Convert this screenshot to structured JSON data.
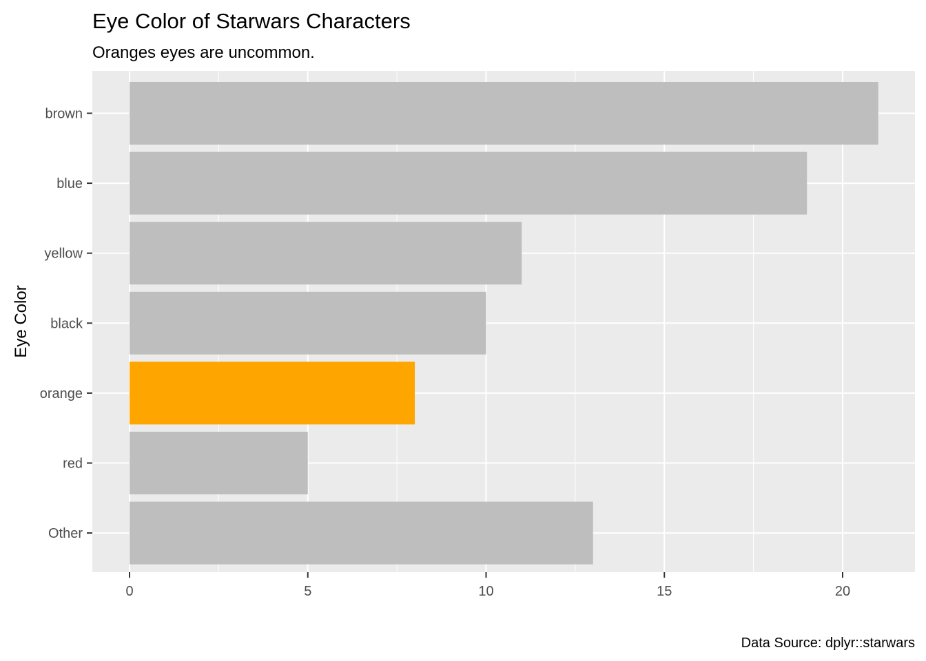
{
  "chart_data": {
    "type": "bar",
    "orientation": "horizontal",
    "title": "Eye Color of Starwars Characters",
    "subtitle": "Oranges eyes are uncommon.",
    "xlabel": "",
    "ylabel": "Eye Color",
    "caption": "Data Source: dplyr::starwars",
    "categories": [
      "brown",
      "blue",
      "yellow",
      "black",
      "orange",
      "red",
      "Other"
    ],
    "values": [
      21,
      19,
      11,
      10,
      8,
      5,
      13
    ],
    "highlight": "orange",
    "xlim": [
      0,
      22
    ],
    "xticks": [
      0,
      5,
      10,
      15,
      20
    ],
    "grid": true,
    "colors": {
      "bar": "#bebebe",
      "highlight": "#ffa500",
      "panel": "#ebebeb",
      "grid": "#ffffff"
    }
  }
}
